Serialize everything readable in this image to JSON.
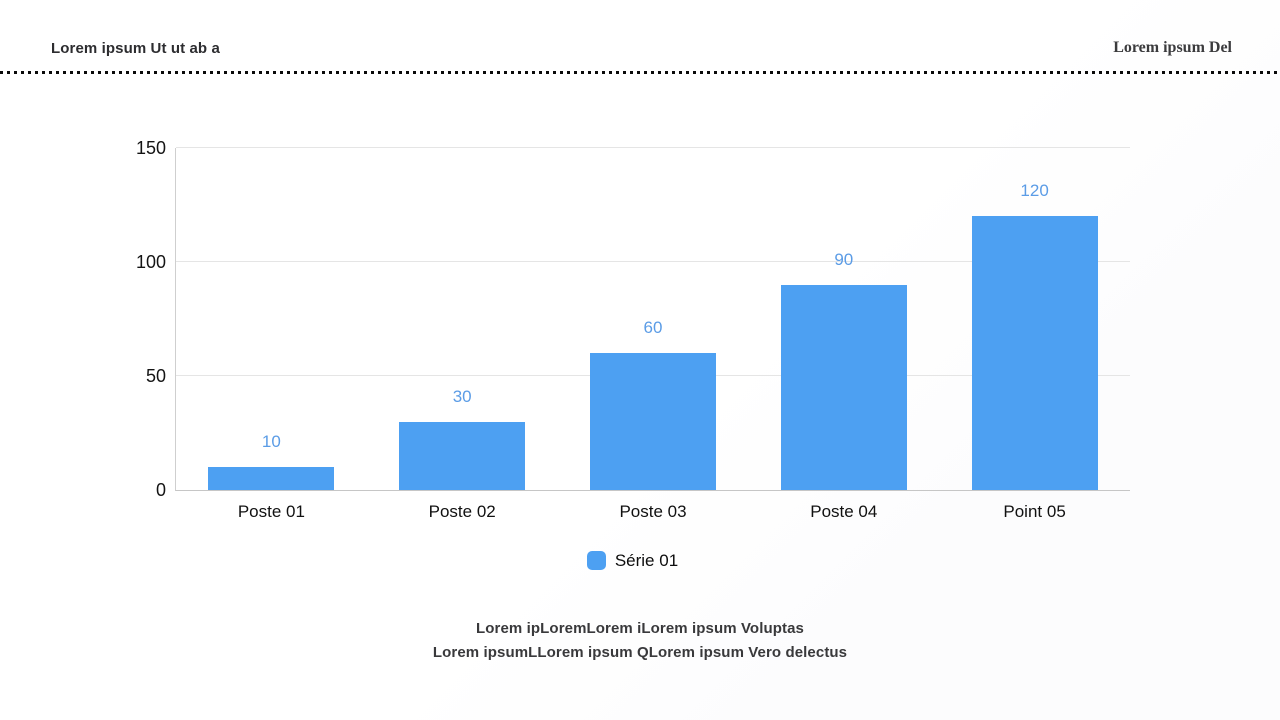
{
  "header": {
    "left_title": "Lorem ipsum Ut ut ab a",
    "right_title": "Lorem ipsum Del"
  },
  "chart_data": {
    "type": "bar",
    "title": "",
    "categories": [
      "Poste 01",
      "Poste 02",
      "Poste 03",
      "Poste 04",
      "Point 05"
    ],
    "series": [
      {
        "name": "Série 01",
        "values": [
          10,
          30,
          60,
          90,
          120
        ]
      }
    ],
    "value_labels": [
      "10",
      "30",
      "60",
      "90",
      "120"
    ],
    "ylim": [
      0,
      150
    ],
    "y_ticks": [
      0,
      50,
      100,
      150
    ],
    "grid": true,
    "legend_position": "bottom",
    "bar_color": "#4da0f2",
    "value_label_color": "#5b9ce6",
    "axis_color": "#cfcfcf",
    "gridline_color": "#e5e5e5"
  },
  "legend": {
    "label": "Série 01",
    "swatch_color": "#4da0f2"
  },
  "footer": {
    "line1": "Lorem ipLoremLorem iLorem ipsum Voluptas",
    "line2": "Lorem ipsumLLorem ipsum QLorem ipsum Vero delectus"
  }
}
